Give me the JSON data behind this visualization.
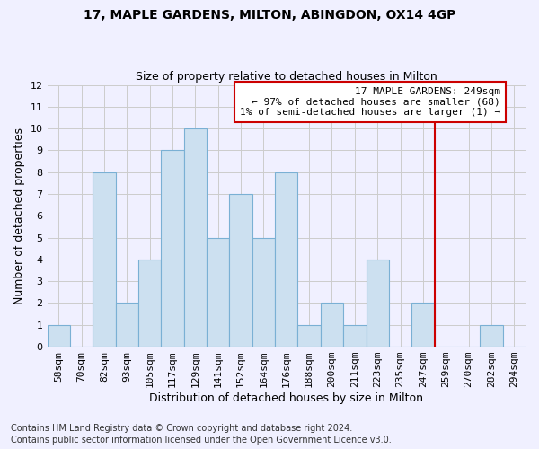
{
  "title": "17, MAPLE GARDENS, MILTON, ABINGDON, OX14 4GP",
  "subtitle": "Size of property relative to detached houses in Milton",
  "xlabel": "Distribution of detached houses by size in Milton",
  "ylabel": "Number of detached properties",
  "footer_line1": "Contains HM Land Registry data © Crown copyright and database right 2024.",
  "footer_line2": "Contains public sector information licensed under the Open Government Licence v3.0.",
  "bin_labels": [
    "58sqm",
    "70sqm",
    "82sqm",
    "93sqm",
    "105sqm",
    "117sqm",
    "129sqm",
    "141sqm",
    "152sqm",
    "164sqm",
    "176sqm",
    "188sqm",
    "200sqm",
    "211sqm",
    "223sqm",
    "235sqm",
    "247sqm",
    "259sqm",
    "270sqm",
    "282sqm",
    "294sqm"
  ],
  "bar_values": [
    1,
    0,
    8,
    2,
    4,
    9,
    10,
    5,
    7,
    5,
    8,
    1,
    2,
    1,
    4,
    0,
    2,
    0,
    0,
    1,
    0
  ],
  "bar_color": "#cce0f0",
  "bar_edgecolor": "#7ab0d4",
  "ylim": [
    0,
    12
  ],
  "yticks": [
    0,
    1,
    2,
    3,
    4,
    5,
    6,
    7,
    8,
    9,
    10,
    11,
    12
  ],
  "vline_x_index": 16.5,
  "annotation_text": "17 MAPLE GARDENS: 249sqm\n← 97% of detached houses are smaller (68)\n1% of semi-detached houses are larger (1) →",
  "annotation_box_color": "#ffffff",
  "annotation_box_edgecolor": "#cc0000",
  "vline_color": "#cc0000",
  "grid_color": "#cccccc",
  "background_color": "#f0f0ff",
  "title_fontsize": 10,
  "subtitle_fontsize": 9,
  "ylabel_fontsize": 9,
  "xlabel_fontsize": 9,
  "tick_fontsize": 8,
  "annotation_fontsize": 8,
  "footer_fontsize": 7
}
